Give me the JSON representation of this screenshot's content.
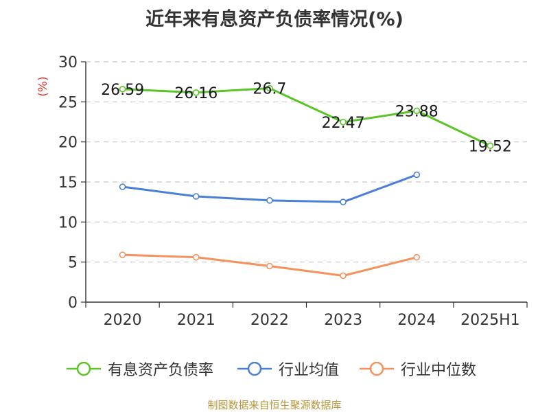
{
  "title": "近年来有息资产负债率情况(%)",
  "source": "制图数据来自恒生聚源数据库",
  "colors": {
    "company": "#5ac428",
    "industry_avg": "#4a7fd6",
    "industry_median": "#f5915a",
    "unit_label": "#e3322b",
    "source_text": "#b8953a",
    "grid": "#c8c8c8",
    "axis": "#333333"
  },
  "chart_data": {
    "type": "line",
    "title": "近年来有息资产负债率情况(%)",
    "ylabel": "(%)",
    "xlabel": "",
    "categories": [
      "2020",
      "2021",
      "2022",
      "2023",
      "2024",
      "2025H1"
    ],
    "ylim": [
      0,
      30
    ],
    "yticks": [
      0,
      5,
      10,
      15,
      20,
      25,
      30
    ],
    "grid": true,
    "legend_position": "bottom",
    "series": [
      {
        "name": "有息资产负债率",
        "color_key": "company",
        "values": [
          26.59,
          26.16,
          26.7,
          22.47,
          23.88,
          19.52
        ],
        "show_labels": true
      },
      {
        "name": "行业均值",
        "color_key": "industry_avg",
        "values": [
          14.4,
          13.2,
          12.7,
          12.5,
          15.9,
          null
        ],
        "show_labels": false
      },
      {
        "name": "行业中位数",
        "color_key": "industry_median",
        "values": [
          5.9,
          5.6,
          4.5,
          3.3,
          5.6,
          null
        ],
        "show_labels": false
      }
    ],
    "data_labels": [
      "26.59",
      "26.16",
      "26.7",
      "22.47",
      "23.88",
      "19.52"
    ]
  }
}
